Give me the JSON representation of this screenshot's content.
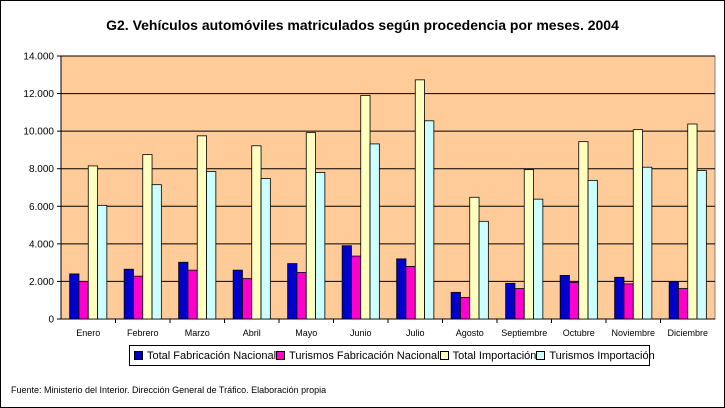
{
  "chart_data": {
    "type": "bar",
    "title": "G2. Vehículos automóviles matriculados según procedencia por meses. 2004",
    "categories": [
      "Enero",
      "Febrero",
      "Marzo",
      "Abril",
      "Mayo",
      "Junio",
      "Julio",
      "Agosto",
      "Septiembre",
      "Octubre",
      "Noviembre",
      "Diciembre"
    ],
    "series": [
      {
        "name": "Total Fabricación Nacional",
        "color": "#0000cc",
        "values": [
          2400,
          2650,
          3020,
          2600,
          2950,
          3900,
          3200,
          1420,
          1900,
          2320,
          2220,
          1980
        ]
      },
      {
        "name": "Turismos Fabricación Nacional",
        "color": "#ff00cc",
        "values": [
          2000,
          2280,
          2600,
          2150,
          2480,
          3350,
          2800,
          1150,
          1620,
          1950,
          1870,
          1620
        ]
      },
      {
        "name": "Total Importación",
        "color": "#ffffc0",
        "values": [
          8150,
          8750,
          9750,
          9220,
          9920,
          11900,
          12730,
          6480,
          7950,
          9440,
          10080,
          10380
        ]
      },
      {
        "name": "Turismos Importación",
        "color": "#ccffff",
        "values": [
          6050,
          7150,
          7850,
          7480,
          7800,
          9320,
          10550,
          5200,
          6380,
          7380,
          8080,
          7900
        ]
      }
    ],
    "yticks": [
      "0",
      "2.000",
      "4.000",
      "6.000",
      "8.000",
      "10.000",
      "12.000",
      "14.000"
    ],
    "ylim": [
      0,
      14000
    ],
    "grid": true,
    "plot_background": "#ffcc99",
    "legend_position": "bottom"
  },
  "footer": {
    "source": "Fuente: Ministerio del Interior. Dirección General de Tráfico. Elaboración propia"
  }
}
